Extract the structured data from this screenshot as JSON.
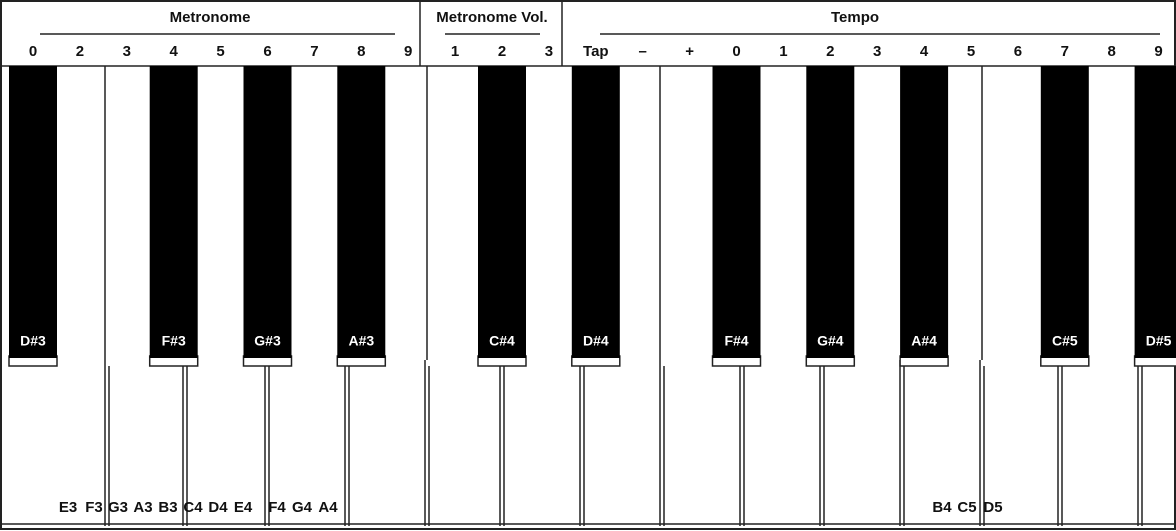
{
  "header": {
    "groups": [
      "Metronome",
      "Metronome Vol.",
      "Tempo"
    ],
    "columns": [
      "0",
      "2",
      "3",
      "4",
      "5",
      "6",
      "7",
      "8",
      "9",
      "1",
      "2",
      "3",
      "Tap",
      "–",
      "+",
      "0",
      "1",
      "2",
      "3",
      "4",
      "5",
      "6",
      "7",
      "8",
      "9"
    ]
  },
  "black_keys": [
    "D#3",
    "F#3",
    "G#3",
    "A#3",
    "C#4",
    "D#4",
    "F#4",
    "G#4",
    "A#4",
    "C#5",
    "D#5"
  ],
  "white_key_labels": [
    "E3",
    "F3",
    "G3",
    "A3",
    "B3",
    "C4",
    "D4",
    "E4",
    "F4",
    "G4",
    "A4",
    "B4",
    "C5",
    "D5"
  ]
}
